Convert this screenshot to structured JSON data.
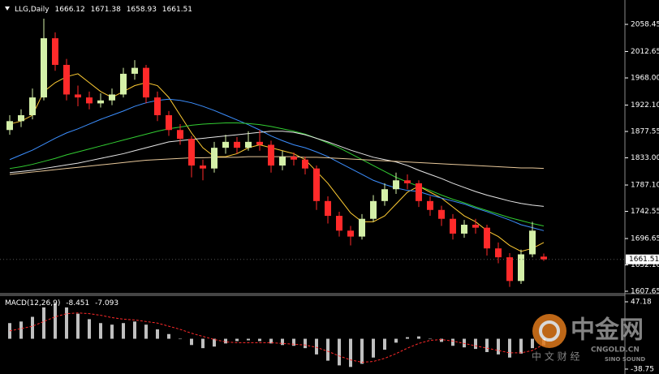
{
  "chart_data": [
    {
      "type": "candlestick",
      "title": "LLG,Daily",
      "open": [
        1880,
        1895,
        1905,
        1935,
        2035,
        1990,
        1940,
        1935,
        1925,
        1930,
        1940,
        1975,
        1985,
        1935,
        1905,
        1880,
        1865,
        1820,
        1815,
        1850,
        1860,
        1850,
        1860,
        1855,
        1820,
        1835,
        1830,
        1815,
        1760,
        1735,
        1710,
        1700,
        1730,
        1760,
        1780,
        1795,
        1790,
        1760,
        1745,
        1730,
        1705,
        1720,
        1715,
        1680,
        1665,
        1625,
        1670,
        1666.12
      ],
      "high": [
        1905,
        1915,
        1950,
        2068,
        2045,
        2000,
        1955,
        1945,
        1942,
        1950,
        1985,
        1998,
        1990,
        1945,
        1912,
        1890,
        1870,
        1830,
        1860,
        1872,
        1868,
        1878,
        1880,
        1862,
        1845,
        1842,
        1835,
        1820,
        1768,
        1742,
        1718,
        1738,
        1770,
        1790,
        1808,
        1805,
        1795,
        1768,
        1752,
        1738,
        1728,
        1730,
        1720,
        1690,
        1672,
        1678,
        1725,
        1671.38
      ],
      "low": [
        1872,
        1885,
        1898,
        1930,
        1980,
        1930,
        1920,
        1915,
        1918,
        1922,
        1935,
        1965,
        1925,
        1895,
        1870,
        1855,
        1800,
        1795,
        1808,
        1840,
        1840,
        1845,
        1845,
        1808,
        1812,
        1820,
        1805,
        1745,
        1722,
        1700,
        1685,
        1695,
        1725,
        1752,
        1772,
        1780,
        1750,
        1735,
        1718,
        1695,
        1698,
        1705,
        1668,
        1655,
        1615,
        1620,
        1665,
        1658.93
      ],
      "close": [
        1895,
        1905,
        1935,
        2035,
        1990,
        1940,
        1935,
        1925,
        1930,
        1940,
        1975,
        1985,
        1935,
        1905,
        1880,
        1865,
        1820,
        1815,
        1850,
        1860,
        1850,
        1860,
        1855,
        1820,
        1835,
        1830,
        1815,
        1760,
        1735,
        1710,
        1700,
        1730,
        1760,
        1780,
        1795,
        1790,
        1760,
        1745,
        1730,
        1705,
        1720,
        1715,
        1680,
        1665,
        1625,
        1670,
        1710,
        1661.51
      ],
      "up_color": "#d4f0a8",
      "down_color": "#ff2a2a",
      "series": [
        {
          "color": "#ffcc33",
          "values": [
            1890,
            1895,
            1905,
            1945,
            1960,
            1970,
            1975,
            1960,
            1945,
            1935,
            1945,
            1955,
            1960,
            1955,
            1935,
            1905,
            1875,
            1850,
            1835,
            1835,
            1840,
            1850,
            1855,
            1850,
            1845,
            1840,
            1830,
            1810,
            1790,
            1765,
            1740,
            1725,
            1725,
            1735,
            1755,
            1775,
            1785,
            1775,
            1765,
            1750,
            1735,
            1725,
            1710,
            1700,
            1685,
            1675,
            1680,
            1690
          ]
        },
        {
          "color": "#3c8fff",
          "values": [
            1830,
            1838,
            1846,
            1856,
            1866,
            1875,
            1882,
            1890,
            1898,
            1905,
            1912,
            1920,
            1926,
            1930,
            1932,
            1930,
            1926,
            1920,
            1913,
            1905,
            1897,
            1889,
            1880,
            1870,
            1862,
            1855,
            1850,
            1843,
            1835,
            1825,
            1815,
            1805,
            1795,
            1788,
            1782,
            1778,
            1776,
            1770,
            1765,
            1760,
            1755,
            1748,
            1742,
            1735,
            1728,
            1720,
            1715,
            1710
          ]
        },
        {
          "color": "#32cd32",
          "values": [
            1815,
            1818,
            1822,
            1827,
            1832,
            1838,
            1843,
            1848,
            1853,
            1858,
            1863,
            1868,
            1873,
            1878,
            1882,
            1885,
            1888,
            1890,
            1891,
            1892,
            1892,
            1891,
            1889,
            1886,
            1882,
            1878,
            1873,
            1866,
            1858,
            1850,
            1840,
            1830,
            1820,
            1810,
            1800,
            1792,
            1785,
            1778,
            1770,
            1763,
            1757,
            1750,
            1744,
            1738,
            1732,
            1727,
            1722,
            1718
          ]
        },
        {
          "color": "#e6e6e6",
          "values": [
            1808,
            1810,
            1812,
            1815,
            1818,
            1821,
            1824,
            1828,
            1832,
            1836,
            1840,
            1845,
            1850,
            1855,
            1860,
            1862,
            1864,
            1866,
            1868,
            1870,
            1872,
            1874,
            1876,
            1878,
            1878,
            1876,
            1872,
            1866,
            1860,
            1853,
            1846,
            1840,
            1834,
            1830,
            1826,
            1820,
            1812,
            1805,
            1798,
            1790,
            1783,
            1776,
            1770,
            1765,
            1760,
            1756,
            1753,
            1751
          ]
        },
        {
          "color": "#e8c89a",
          "values": [
            1805,
            1807,
            1809,
            1811,
            1813,
            1815,
            1817,
            1819,
            1821,
            1823,
            1825,
            1827,
            1829,
            1830,
            1831,
            1832,
            1833,
            1833,
            1834,
            1834,
            1834,
            1835,
            1835,
            1835,
            1835,
            1835,
            1834,
            1834,
            1833,
            1832,
            1831,
            1830,
            1829,
            1828,
            1827,
            1826,
            1825,
            1824,
            1823,
            1822,
            1821,
            1820,
            1819,
            1818,
            1817,
            1816,
            1816,
            1815
          ]
        }
      ],
      "ylim": [
        1604.9,
        2099.6
      ],
      "yticks": [
        2058.45,
        2012.65,
        {
          "value": 1968,
          "label": "1968.00"
        },
        {
          "value": 1922.1,
          "label": "1922.10"
        },
        1877.55,
        {
          "value": 1833,
          "label": "1833.00"
        },
        {
          "value": 1787.1,
          "label": "1787.10"
        },
        1742.55,
        1696.65,
        {
          "value": 1652.1,
          "label": "1652.10"
        },
        1607.65
      ]
    },
    {
      "type": "macd",
      "title": "MACD(12,26,9)",
      "histogram": [
        20,
        22,
        28,
        40,
        45,
        40,
        32,
        25,
        20,
        18,
        20,
        22,
        18,
        12,
        6,
        0,
        -8,
        -12,
        -10,
        -6,
        -3,
        -2,
        -3,
        -6,
        -8,
        -9,
        -12,
        -20,
        -28,
        -34,
        -36,
        -32,
        -24,
        -14,
        -5,
        2,
        3,
        0,
        -4,
        -9,
        -11,
        -13,
        -17,
        -20,
        -24,
        -19,
        -12,
        -8.451
      ],
      "signal": [
        10,
        13,
        16,
        22,
        28,
        32,
        33,
        32,
        30,
        27,
        25,
        24,
        22,
        20,
        16,
        12,
        7,
        3,
        -1,
        -4,
        -5,
        -5,
        -5,
        -5,
        -6,
        -7,
        -8,
        -11,
        -16,
        -22,
        -27,
        -30,
        -29,
        -25,
        -19,
        -12,
        -6,
        -2,
        -1,
        -3,
        -6,
        -9,
        -12,
        -15,
        -18,
        -18,
        -15,
        -7.093
      ],
      "histogram_color": "#c0c0c0",
      "signal_color": "#ff2a2a",
      "ylim": [
        -45,
        56.5
      ],
      "yticks": [
        47.18,
        -38.75
      ]
    }
  ],
  "watermark": {
    "logo": "中金网",
    "site": "CNGOLD.CN",
    "tagline": "中 文 财 经",
    "brand": "SINO SOUND"
  }
}
